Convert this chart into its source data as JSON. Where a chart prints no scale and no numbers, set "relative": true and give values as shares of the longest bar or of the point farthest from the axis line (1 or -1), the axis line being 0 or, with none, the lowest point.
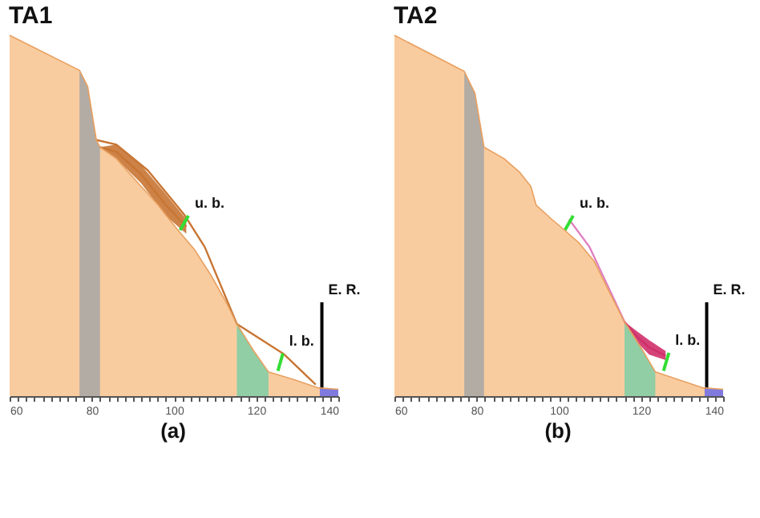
{
  "chart_data": [
    {
      "type": "area",
      "title": "TA1",
      "relative": true,
      "xlim": [
        60,
        140
      ],
      "grid": false,
      "xticks": [
        60,
        {
          "value": 62,
          "label": null
        },
        {
          "value": 64,
          "label": null
        },
        {
          "value": 66,
          "label": null
        },
        {
          "value": 68,
          "label": null
        },
        {
          "value": 70,
          "label": null
        },
        {
          "value": 72,
          "label": null
        },
        {
          "value": 74,
          "label": null
        },
        {
          "value": 76,
          "label": null
        },
        {
          "value": 78,
          "label": null
        },
        80,
        {
          "value": 82,
          "label": null
        },
        {
          "value": 84,
          "label": null
        },
        {
          "value": 86,
          "label": null
        },
        {
          "value": 88,
          "label": null
        },
        {
          "value": 90,
          "label": null
        },
        {
          "value": 92,
          "label": null
        },
        {
          "value": 94,
          "label": null
        },
        {
          "value": 96,
          "label": null
        },
        {
          "value": 98,
          "label": null
        },
        100,
        {
          "value": 102,
          "label": null
        },
        {
          "value": 104,
          "label": null
        },
        {
          "value": 106,
          "label": null
        },
        {
          "value": 108,
          "label": null
        },
        {
          "value": 110,
          "label": null
        },
        {
          "value": 112,
          "label": null
        },
        {
          "value": 114,
          "label": null
        },
        {
          "value": 116,
          "label": null
        },
        {
          "value": 118,
          "label": null
        },
        120,
        {
          "value": 122,
          "label": null
        },
        {
          "value": 124,
          "label": null
        },
        {
          "value": 126,
          "label": null
        },
        {
          "value": 128,
          "label": null
        },
        {
          "value": 130,
          "label": null
        },
        {
          "value": 132,
          "label": null
        },
        {
          "value": 134,
          "label": null
        },
        {
          "value": 136,
          "label": null
        },
        {
          "value": 138,
          "label": null
        },
        140
      ],
      "series": [
        {
          "color": "#f9cc9f",
          "x": [
            60,
            77,
            79,
            81.1,
            82,
            86,
            91,
            96.2,
            100.6,
            105,
            109,
            112.8,
            115.3,
            119.2,
            123,
            129.4,
            135.1,
            140
          ],
          "values": [
            1.0,
            0.903,
            0.858,
            0.71,
            0.69,
            0.658,
            0.594,
            0.529,
            0.465,
            0.406,
            0.335,
            0.258,
            0.2,
            0.129,
            0.067,
            0.045,
            0.023,
            0.019
          ]
        },
        {
          "type": "area",
          "color": "#a6a6a6",
          "x": [
            77,
            79,
            81.1,
            82
          ],
          "values": [
            0.903,
            0.858,
            0.71,
            0.69
          ]
        },
        {
          "type": "area",
          "color": "#7fcca6",
          "x": [
            115.3,
            119.2,
            123
          ],
          "values": [
            0.2,
            0.129,
            0.067
          ]
        },
        {
          "type": "area",
          "color": "#6b6bea",
          "x": [
            135.5,
            140
          ],
          "values": [
            0.022,
            0.019
          ]
        },
        {
          "type": "line",
          "color": "#c87533",
          "x": [
            82,
            86,
            92,
            98,
            103
          ],
          "values": [
            0.69,
            0.677,
            0.615,
            0.53,
            0.47
          ],
          "lower": [
            0.69,
            0.658,
            0.59,
            0.5,
            0.45
          ],
          "upper": [
            0.69,
            0.697,
            0.64,
            0.56,
            0.49
          ]
        },
        {
          "type": "line",
          "color": "#c87533",
          "x": [
            81.1,
            86,
            93.6,
            102.5,
            107.5,
            115.3,
            126.8,
            134.5
          ],
          "values": [
            0.71,
            0.697,
            0.626,
            0.503,
            0.413,
            0.2,
            0.116,
            0.032
          ]
        },
        {
          "type": "line",
          "color": "#33dd33",
          "x": [
            101.5,
            103.5
          ],
          "values": [
            0.46,
            0.5
          ]
        },
        {
          "type": "line",
          "color": "#33dd33",
          "x": [
            125.3,
            126.5
          ],
          "values": [
            0.07,
            0.118
          ]
        },
        {
          "type": "line",
          "color": "#000000",
          "x": [
            136,
            136
          ],
          "values": [
            0.02,
            0.26
          ]
        }
      ],
      "annotations": [
        {
          "text": "u. b.",
          "x": 103.5,
          "y": 0.5
        },
        {
          "text": "l. b.",
          "x": 126.5,
          "y": 0.118
        },
        {
          "text": "E. R.",
          "x": 136,
          "y": 0.26
        },
        "(a)"
      ]
    },
    {
      "type": "area",
      "title": "TA2",
      "relative": true,
      "xlim": [
        60,
        140
      ],
      "grid": false,
      "xticks": [
        60,
        {
          "value": 62,
          "label": null
        },
        {
          "value": 64,
          "label": null
        },
        {
          "value": 66,
          "label": null
        },
        {
          "value": 68,
          "label": null
        },
        {
          "value": 70,
          "label": null
        },
        {
          "value": 72,
          "label": null
        },
        {
          "value": 74,
          "label": null
        },
        {
          "value": 76,
          "label": null
        },
        {
          "value": 78,
          "label": null
        },
        80,
        {
          "value": 82,
          "label": null
        },
        {
          "value": 84,
          "label": null
        },
        {
          "value": 86,
          "label": null
        },
        {
          "value": 88,
          "label": null
        },
        {
          "value": 90,
          "label": null
        },
        {
          "value": 92,
          "label": null
        },
        {
          "value": 94,
          "label": null
        },
        {
          "value": 96,
          "label": null
        },
        {
          "value": 98,
          "label": null
        },
        100,
        {
          "value": 102,
          "label": null
        },
        {
          "value": 104,
          "label": null
        },
        {
          "value": 106,
          "label": null
        },
        {
          "value": 108,
          "label": null
        },
        {
          "value": 110,
          "label": null
        },
        {
          "value": 112,
          "label": null
        },
        {
          "value": 114,
          "label": null
        },
        {
          "value": 116,
          "label": null
        },
        {
          "value": 118,
          "label": null
        },
        120,
        {
          "value": 122,
          "label": null
        },
        {
          "value": 124,
          "label": null
        },
        {
          "value": 126,
          "label": null
        },
        {
          "value": 128,
          "label": null
        },
        {
          "value": 130,
          "label": null
        },
        {
          "value": 132,
          "label": null
        },
        {
          "value": 134,
          "label": null
        },
        {
          "value": 136,
          "label": null
        },
        {
          "value": 138,
          "label": null
        },
        140
      ],
      "series": [
        {
          "color": "#f9cc9f",
          "x": [
            60,
            77,
            79.6,
            81.8,
            86.7,
            90.6,
            93.2,
            94.5,
            98.3,
            100.9,
            104.8,
            108.6,
            112.5,
            116,
            120.3,
            123.5,
            129.3,
            135.1,
            140
          ],
          "values": [
            1.0,
            0.9,
            0.839,
            0.69,
            0.658,
            0.619,
            0.581,
            0.529,
            0.49,
            0.465,
            0.426,
            0.374,
            0.284,
            0.206,
            0.129,
            0.067,
            0.045,
            0.023,
            0.019
          ]
        },
        {
          "type": "area",
          "color": "#a6a6a6",
          "x": [
            77,
            79.6,
            81.8
          ],
          "values": [
            0.9,
            0.839,
            0.69
          ]
        },
        {
          "type": "area",
          "color": "#7fcca6",
          "x": [
            116,
            120.3,
            123.5
          ],
          "values": [
            0.206,
            0.129,
            0.067
          ]
        },
        {
          "type": "area",
          "color": "#6b6bea",
          "x": [
            135.5,
            140
          ],
          "values": [
            0.022,
            0.019
          ]
        },
        {
          "type": "line",
          "color": "#e080c0",
          "x": [
            102.5,
            107.5,
            116
          ],
          "values": [
            0.49,
            0.413,
            0.206
          ]
        },
        {
          "type": "line",
          "color": "#d0306a",
          "x": [
            116,
            119,
            122,
            126
          ],
          "values": [
            0.206,
            0.165,
            0.135,
            0.112
          ],
          "lower": [
            0.206,
            0.15,
            0.115,
            0.1
          ],
          "upper": [
            0.206,
            0.18,
            0.155,
            0.125
          ]
        },
        {
          "type": "line",
          "color": "#33dd33",
          "x": [
            101.5,
            103.5
          ],
          "values": [
            0.46,
            0.5
          ]
        },
        {
          "type": "line",
          "color": "#33dd33",
          "x": [
            125.5,
            126.8
          ],
          "values": [
            0.07,
            0.12
          ]
        },
        {
          "type": "line",
          "color": "#000000",
          "x": [
            136,
            136
          ],
          "values": [
            0.02,
            0.26
          ]
        }
      ],
      "annotations": [
        {
          "text": "u. b.",
          "x": 103.5,
          "y": 0.5
        },
        {
          "text": "l. b.",
          "x": 126.8,
          "y": 0.12
        },
        {
          "text": "E. R.",
          "x": 136,
          "y": 0.26
        },
        "(b)"
      ]
    }
  ]
}
